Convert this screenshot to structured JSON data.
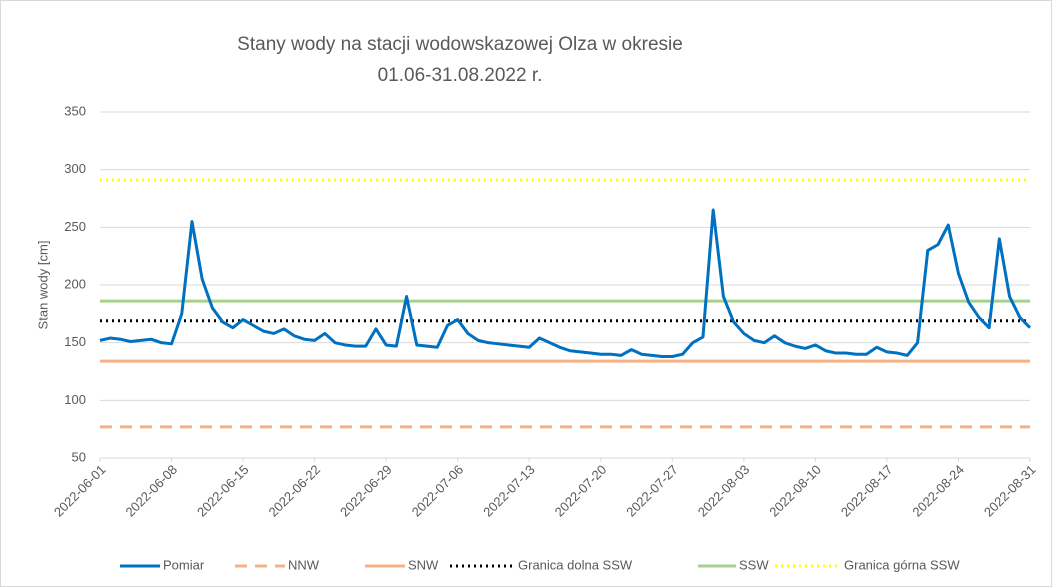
{
  "chart_data": {
    "type": "line",
    "title": [
      "Stany wody na stacji wodowskazowej Olza w okresie",
      "01.06-31.08.2022 r."
    ],
    "y_label": "Stan wody [cm]",
    "xlim": [
      "2022-06-01",
      "2022-08-31"
    ],
    "xticks": [
      "2022-06-01",
      "2022-06-08",
      "2022-06-15",
      "2022-06-22",
      "2022-06-29",
      "2022-07-06",
      "2022-07-13",
      "2022-07-20",
      "2022-07-27",
      "2022-08-03",
      "2022-08-10",
      "2022-08-17",
      "2022-08-24",
      "2022-08-31"
    ],
    "ylim": [
      50,
      350
    ],
    "yticks": [
      50,
      100,
      150,
      200,
      250,
      300,
      350
    ],
    "grid": true,
    "legend": "bottom",
    "x": [
      "2022-06-01",
      "2022-06-02",
      "2022-06-03",
      "2022-06-04",
      "2022-06-05",
      "2022-06-06",
      "2022-06-07",
      "2022-06-08",
      "2022-06-09",
      "2022-06-10",
      "2022-06-11",
      "2022-06-12",
      "2022-06-13",
      "2022-06-14",
      "2022-06-15",
      "2022-06-16",
      "2022-06-17",
      "2022-06-18",
      "2022-06-19",
      "2022-06-20",
      "2022-06-21",
      "2022-06-22",
      "2022-06-23",
      "2022-06-24",
      "2022-06-25",
      "2022-06-26",
      "2022-06-27",
      "2022-06-28",
      "2022-06-29",
      "2022-06-30",
      "2022-07-01",
      "2022-07-02",
      "2022-07-03",
      "2022-07-04",
      "2022-07-05",
      "2022-07-06",
      "2022-07-07",
      "2022-07-08",
      "2022-07-09",
      "2022-07-10",
      "2022-07-11",
      "2022-07-12",
      "2022-07-13",
      "2022-07-14",
      "2022-07-15",
      "2022-07-16",
      "2022-07-17",
      "2022-07-18",
      "2022-07-19",
      "2022-07-20",
      "2022-07-21",
      "2022-07-22",
      "2022-07-23",
      "2022-07-24",
      "2022-07-25",
      "2022-07-26",
      "2022-07-27",
      "2022-07-28",
      "2022-07-29",
      "2022-07-30",
      "2022-07-31",
      "2022-08-01",
      "2022-08-02",
      "2022-08-03",
      "2022-08-04",
      "2022-08-05",
      "2022-08-06",
      "2022-08-07",
      "2022-08-08",
      "2022-08-09",
      "2022-08-10",
      "2022-08-11",
      "2022-08-12",
      "2022-08-13",
      "2022-08-14",
      "2022-08-15",
      "2022-08-16",
      "2022-08-17",
      "2022-08-18",
      "2022-08-19",
      "2022-08-20",
      "2022-08-21",
      "2022-08-22",
      "2022-08-23",
      "2022-08-24",
      "2022-08-25",
      "2022-08-26",
      "2022-08-27",
      "2022-08-28",
      "2022-08-29",
      "2022-08-30",
      "2022-08-31"
    ],
    "series": [
      {
        "name": "Pomiar",
        "color": "#0070c0",
        "style": "solid",
        "values": [
          152,
          154,
          153,
          151,
          152,
          153,
          150,
          149,
          175,
          255,
          205,
          180,
          168,
          163,
          170,
          165,
          160,
          158,
          162,
          156,
          153,
          152,
          158,
          150,
          148,
          147,
          147,
          162,
          148,
          147,
          190,
          148,
          147,
          146,
          165,
          170,
          158,
          152,
          150,
          149,
          148,
          147,
          146,
          154,
          150,
          146,
          143,
          142,
          141,
          140,
          140,
          139,
          144,
          140,
          139,
          138,
          138,
          140,
          150,
          155,
          265,
          190,
          168,
          158,
          152,
          150,
          156,
          150,
          147,
          145,
          148,
          143,
          141,
          141,
          140,
          140,
          146,
          142,
          141,
          139,
          150,
          230,
          235,
          252,
          210,
          185,
          172,
          163,
          240,
          190,
          172,
          163
        ]
      }
    ],
    "hlines": [
      {
        "name": "NNW",
        "color": "#f4b183",
        "style": "dashed",
        "value": 77
      },
      {
        "name": "SNW",
        "color": "#f4b183",
        "style": "solid",
        "value": 134
      },
      {
        "name": "Granica dolna SSW",
        "color": "#000000",
        "style": "dotted",
        "value": 169
      },
      {
        "name": "SSW",
        "color": "#a9d18e",
        "style": "solid",
        "value": 186
      },
      {
        "name": "Granica górna SSW",
        "color": "#ffff00",
        "style": "dotted",
        "value": 291
      }
    ]
  }
}
